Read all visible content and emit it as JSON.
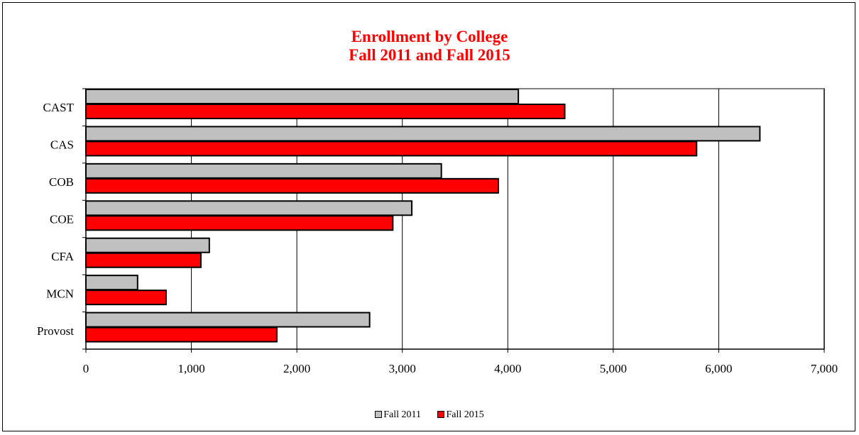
{
  "chart_data": {
    "type": "bar",
    "orientation": "horizontal",
    "title": "Enrollment by College",
    "subtitle": "Fall 2011 and Fall 2015",
    "categories": [
      "CAST",
      "CAS",
      "COB",
      "COE",
      "CFA",
      "MCN",
      "Provost"
    ],
    "series": [
      {
        "name": "Fall 2011",
        "color": "#c0c0c0",
        "values": [
          4100,
          6390,
          3370,
          3090,
          1170,
          490,
          2690
        ]
      },
      {
        "name": "Fall 2015",
        "color": "#ff0000",
        "values": [
          4540,
          5790,
          3910,
          2910,
          1090,
          760,
          1810
        ]
      }
    ],
    "xlim": [
      0,
      7000
    ],
    "xticks": [
      0,
      1000,
      2000,
      3000,
      4000,
      5000,
      6000,
      7000
    ],
    "xtick_labels": [
      "0",
      "1,000",
      "2,000",
      "3,000",
      "4,000",
      "5,000",
      "6,000",
      "7,000"
    ],
    "xlabel": "",
    "ylabel": "",
    "grid": "vertical",
    "legend_position": "bottom"
  }
}
